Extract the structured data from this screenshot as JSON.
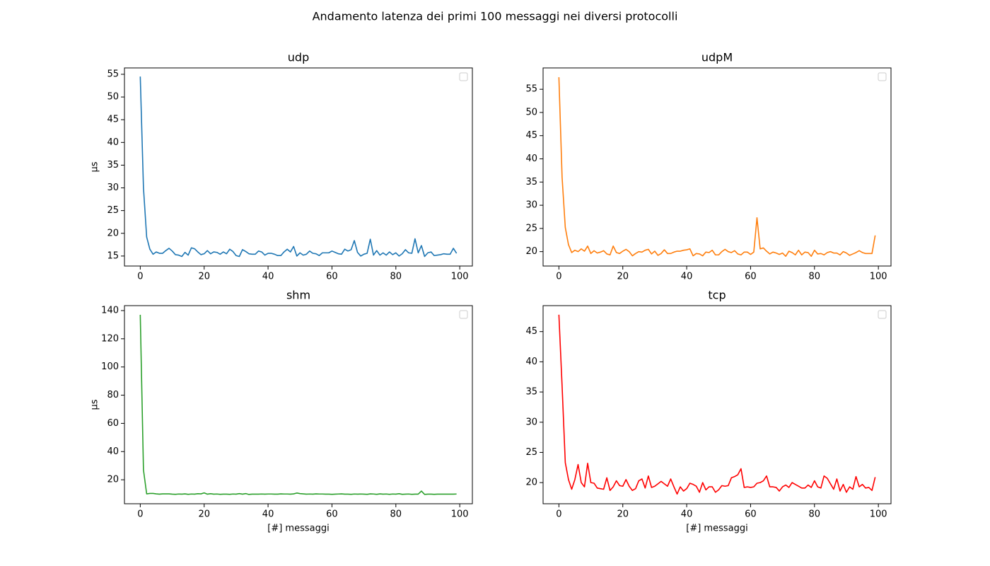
{
  "title": "Andamento latenza dei primi 100 messaggi nei diversi protocolli",
  "chart_data": [
    {
      "type": "line",
      "title": "udp",
      "ylabel": "µs",
      "color": "#1f77b4",
      "legend": "upper right",
      "x": [
        0,
        1,
        2,
        3,
        4,
        5,
        6,
        7,
        8,
        9,
        10,
        11,
        12,
        13,
        14,
        15,
        16,
        17,
        18,
        19,
        20,
        21,
        22,
        23,
        24,
        25,
        26,
        27,
        28,
        29,
        30,
        31,
        32,
        33,
        34,
        35,
        36,
        37,
        38,
        39,
        40,
        41,
        42,
        43,
        44,
        45,
        46,
        47,
        48,
        49,
        50,
        51,
        52,
        53,
        54,
        55,
        56,
        57,
        58,
        59,
        60,
        61,
        62,
        63,
        64,
        65,
        66,
        67,
        68,
        69,
        70,
        71,
        72,
        73,
        74,
        75,
        76,
        77,
        78,
        79,
        80,
        81,
        82,
        83,
        84,
        85,
        86,
        87,
        88,
        89,
        90,
        91,
        92,
        93,
        94,
        95,
        96,
        97,
        98,
        99
      ],
      "values": [
        54.5,
        30,
        19.2,
        16.5,
        15.4,
        15.9,
        15.6,
        15.6,
        16.2,
        16.7,
        16.1,
        15.3,
        15.2,
        14.9,
        15.8,
        15.2,
        16.8,
        16.6,
        15.9,
        15.3,
        15.5,
        16.2,
        15.5,
        15.9,
        15.8,
        15.4,
        15.9,
        15.5,
        16.5,
        16,
        15.1,
        14.9,
        16.4,
        16,
        15.5,
        15.4,
        15.4,
        16.1,
        15.9,
        15.2,
        15.6,
        15.6,
        15.4,
        15.1,
        15.1,
        15.9,
        16.5,
        15.9,
        17.1,
        15,
        15.7,
        15.2,
        15.4,
        16.1,
        15.6,
        15.5,
        15.1,
        15.7,
        15.7,
        15.7,
        16.1,
        15.8,
        15.5,
        15.4,
        16.5,
        16.1,
        16.4,
        18.4,
        15.8,
        15,
        15.4,
        15.6,
        18.7,
        15.2,
        16.2,
        15.2,
        15.7,
        15.2,
        15.9,
        15.3,
        15.7,
        15,
        15.5,
        16.4,
        15.7,
        15.6,
        18.8,
        15.7,
        17.3,
        14.9,
        15.7,
        15.9,
        15.1,
        15.2,
        15.3,
        15.5,
        15.4,
        15.4,
        16.7,
        15.6
      ],
      "xlim": [
        -4.95,
        103.95
      ],
      "xticks": [
        0,
        20,
        40,
        60,
        80,
        100
      ],
      "ylim": [
        12.8,
        56.4
      ],
      "yticks": [
        15,
        20,
        25,
        30,
        35,
        40,
        45,
        50,
        55
      ]
    },
    {
      "type": "line",
      "title": "udpM",
      "color": "#ff7f0e",
      "legend": "upper right",
      "x": [
        0,
        1,
        2,
        3,
        4,
        5,
        6,
        7,
        8,
        9,
        10,
        11,
        12,
        13,
        14,
        15,
        16,
        17,
        18,
        19,
        20,
        21,
        22,
        23,
        24,
        25,
        26,
        27,
        28,
        29,
        30,
        31,
        32,
        33,
        34,
        35,
        36,
        37,
        38,
        39,
        40,
        41,
        42,
        43,
        44,
        45,
        46,
        47,
        48,
        49,
        50,
        51,
        52,
        53,
        54,
        55,
        56,
        57,
        58,
        59,
        60,
        61,
        62,
        63,
        64,
        65,
        66,
        67,
        68,
        69,
        70,
        71,
        72,
        73,
        74,
        75,
        76,
        77,
        78,
        79,
        80,
        81,
        82,
        83,
        84,
        85,
        86,
        87,
        88,
        89,
        90,
        91,
        92,
        93,
        94,
        95,
        96,
        97,
        98,
        99
      ],
      "values": [
        57.6,
        36,
        25.2,
        21.5,
        19.8,
        20.3,
        20,
        20.6,
        20.1,
        21.2,
        19.6,
        20.2,
        19.7,
        19.9,
        20.2,
        19.5,
        19.3,
        21.2,
        19.8,
        19.6,
        20.1,
        20.5,
        20,
        19.1,
        19.6,
        20,
        19.9,
        20.3,
        20.5,
        19.5,
        20.1,
        19.2,
        19.6,
        20.4,
        19.6,
        19.6,
        19.9,
        20.1,
        20.1,
        20.3,
        20.4,
        20.6,
        19.1,
        19.6,
        19.5,
        19.1,
        19.9,
        19.8,
        20.3,
        19.3,
        19.3,
        20,
        20.5,
        20,
        19.8,
        20.2,
        19.5,
        19.3,
        19.9,
        19.9,
        19.4,
        19.9,
        27.3,
        20.6,
        20.8,
        20.1,
        19.5,
        19.9,
        19.7,
        19.4,
        19.7,
        19,
        20.1,
        19.8,
        19.3,
        20.3,
        19.3,
        19.9,
        19.8,
        19,
        20.3,
        19.5,
        19.6,
        19.3,
        19.8,
        20,
        19.7,
        19.7,
        19.3,
        20,
        19.7,
        19.2,
        19.5,
        19.8,
        20.2,
        19.8,
        19.6,
        19.6,
        19.6,
        23.5
      ],
      "xlim": [
        -4.95,
        103.95
      ],
      "xticks": [
        0,
        20,
        40,
        60,
        80,
        100
      ],
      "ylim": [
        16.9,
        59.6
      ],
      "yticks": [
        20,
        25,
        30,
        35,
        40,
        45,
        50,
        55
      ]
    },
    {
      "type": "line",
      "title": "shm",
      "ylabel": "µs",
      "xlabel": "[#] messaggi",
      "color": "#2ca02c",
      "legend": "upper right",
      "x": [
        0,
        1,
        2,
        3,
        4,
        5,
        6,
        7,
        8,
        9,
        10,
        11,
        12,
        13,
        14,
        15,
        16,
        17,
        18,
        19,
        20,
        21,
        22,
        23,
        24,
        25,
        26,
        27,
        28,
        29,
        30,
        31,
        32,
        33,
        34,
        35,
        36,
        37,
        38,
        39,
        40,
        41,
        42,
        43,
        44,
        45,
        46,
        47,
        48,
        49,
        50,
        51,
        52,
        53,
        54,
        55,
        56,
        57,
        58,
        59,
        60,
        61,
        62,
        63,
        64,
        65,
        66,
        67,
        68,
        69,
        70,
        71,
        72,
        73,
        74,
        75,
        76,
        77,
        78,
        79,
        80,
        81,
        82,
        83,
        84,
        85,
        86,
        87,
        88,
        89,
        90,
        91,
        92,
        93,
        94,
        95,
        96,
        97,
        98,
        99
      ],
      "values": [
        137,
        27,
        10,
        10.3,
        10.3,
        10,
        9.8,
        10,
        10,
        10,
        9.8,
        9.7,
        9.9,
        9.8,
        10,
        9.7,
        9.9,
        9.8,
        10.1,
        10,
        10.7,
        9.8,
        10.1,
        9.8,
        9.9,
        9.7,
        9.8,
        9.8,
        9.7,
        9.9,
        9.8,
        10.2,
        9.8,
        10.2,
        9.6,
        9.8,
        9.8,
        9.8,
        9.9,
        9.8,
        9.9,
        9.9,
        9.8,
        9.8,
        10,
        9.9,
        9.9,
        9.8,
        10,
        10.6,
        10.2,
        10,
        9.8,
        9.9,
        9.8,
        10,
        9.9,
        9.9,
        9.8,
        9.8,
        9.7,
        9.8,
        9.9,
        10,
        9.8,
        9.8,
        9.7,
        9.9,
        9.8,
        9.9,
        9.8,
        9.7,
        10,
        9.9,
        9.7,
        10,
        9.8,
        9.9,
        9.7,
        9.9,
        9.8,
        10.1,
        9.7,
        9.8,
        9.9,
        9.7,
        9.8,
        9.8,
        12,
        9.6,
        9.8,
        9.8,
        9.7,
        9.8,
        9.8,
        9.8,
        9.8,
        9.8,
        9.8,
        9.9
      ],
      "xlim": [
        -4.95,
        103.95
      ],
      "xticks": [
        0,
        20,
        40,
        60,
        80,
        100
      ],
      "ylim": [
        3,
        143.5
      ],
      "yticks": [
        20,
        40,
        60,
        80,
        100,
        120,
        140
      ]
    },
    {
      "type": "line",
      "title": "tcp",
      "xlabel": "[#] messaggi",
      "color": "#ff0000",
      "legend": "upper right",
      "x": [
        0,
        1,
        2,
        3,
        4,
        5,
        6,
        7,
        8,
        9,
        10,
        11,
        12,
        13,
        14,
        15,
        16,
        17,
        18,
        19,
        20,
        21,
        22,
        23,
        24,
        25,
        26,
        27,
        28,
        29,
        30,
        31,
        32,
        33,
        34,
        35,
        36,
        37,
        38,
        39,
        40,
        41,
        42,
        43,
        44,
        45,
        46,
        47,
        48,
        49,
        50,
        51,
        52,
        53,
        54,
        55,
        56,
        57,
        58,
        59,
        60,
        61,
        62,
        63,
        64,
        65,
        66,
        67,
        68,
        69,
        70,
        71,
        72,
        73,
        74,
        75,
        76,
        77,
        78,
        79,
        80,
        81,
        82,
        83,
        84,
        85,
        86,
        87,
        88,
        89,
        90,
        91,
        92,
        93,
        94,
        95,
        96,
        97,
        98,
        99
      ],
      "values": [
        47.8,
        36,
        23.3,
        20.5,
        18.9,
        20.5,
        23,
        20,
        19.3,
        23.2,
        20,
        19.9,
        19.1,
        19,
        18.9,
        20.8,
        18.7,
        19.3,
        20.3,
        19.5,
        19.4,
        20.5,
        19.4,
        18.7,
        19,
        20.3,
        20.6,
        19.1,
        21.1,
        19.2,
        19.4,
        19.8,
        20.2,
        19.8,
        19.4,
        20.6,
        19.3,
        18.1,
        19.3,
        18.6,
        19,
        19.9,
        19.7,
        19.4,
        18.4,
        20,
        18.8,
        19.3,
        19.3,
        18.4,
        18.8,
        19.5,
        19.4,
        19.5,
        20.8,
        21,
        21.3,
        22.3,
        19.2,
        19.3,
        19.2,
        19.3,
        19.9,
        20,
        20.3,
        21.1,
        19.3,
        19.3,
        19.2,
        18.6,
        19.3,
        19.6,
        19.2,
        20,
        19.7,
        19.4,
        19.1,
        19.1,
        19.6,
        19.2,
        20.3,
        19.3,
        19.1,
        21.1,
        20.7,
        19.8,
        18.9,
        20.6,
        18.6,
        19.7,
        18.4,
        19.3,
        18.9,
        21,
        19.3,
        19.7,
        19.1,
        19.2,
        18.7,
        20.9
      ],
      "xlim": [
        -4.95,
        103.95
      ],
      "xticks": [
        0,
        20,
        40,
        60,
        80,
        100
      ],
      "ylim": [
        16.5,
        49.3
      ],
      "yticks": [
        20,
        25,
        30,
        35,
        40,
        45
      ]
    }
  ]
}
